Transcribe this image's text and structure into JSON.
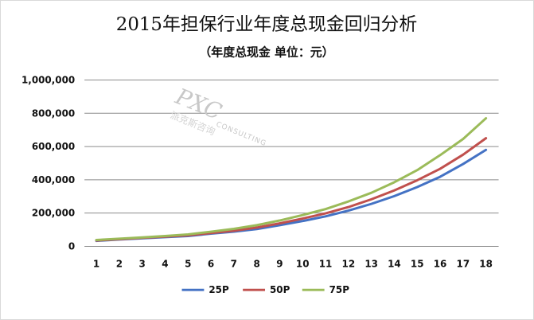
{
  "chart_data": {
    "type": "line",
    "title": "2015年担保行业年度总现金回归分析",
    "subtitle": "（年度总现金 单位：元）",
    "categories": [
      "1",
      "2",
      "3",
      "4",
      "5",
      "6",
      "7",
      "8",
      "9",
      "10",
      "11",
      "12",
      "13",
      "14",
      "15",
      "16",
      "17",
      "18"
    ],
    "ylim": [
      0,
      1000000
    ],
    "yticks": [
      0,
      200000,
      400000,
      600000,
      800000,
      1000000
    ],
    "ytick_labels": [
      "0",
      "200,000",
      "400,000",
      "600,000",
      "800,000",
      "1,000,000"
    ],
    "grid": true,
    "legend_position": "bottom",
    "series": [
      {
        "name": "25P",
        "color": "#4472c4",
        "values": [
          33000,
          41000,
          48000,
          55000,
          62000,
          76000,
          88000,
          104000,
          127000,
          152000,
          180000,
          215000,
          255000,
          302000,
          356000,
          418000,
          495000,
          580000
        ]
      },
      {
        "name": "50P",
        "color": "#c0504d",
        "values": [
          35000,
          43000,
          51000,
          58000,
          66000,
          80000,
          94000,
          113000,
          138000,
          167000,
          198000,
          236000,
          283000,
          336000,
          397000,
          466000,
          551000,
          650000
        ]
      },
      {
        "name": "75P",
        "color": "#9bbb59",
        "values": [
          38000,
          46000,
          54000,
          62000,
          72000,
          88000,
          105000,
          127000,
          155000,
          188000,
          224000,
          270000,
          322000,
          385000,
          458000,
          548000,
          645000,
          770000
        ]
      }
    ]
  },
  "watermark": {
    "brand": "PXC",
    "tagline": "CONSULTING",
    "chinese": "派克斯咨询"
  }
}
